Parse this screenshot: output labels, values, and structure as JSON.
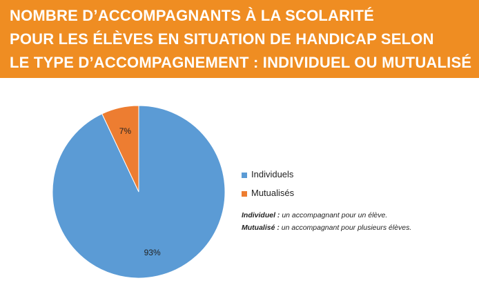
{
  "title": {
    "line1": "NOMBRE D’ACCOMPAGNANTS À LA SCOLARITÉ",
    "line2": "POUR LES ÉLÈVES EN SITUATION DE HANDICAP SELON",
    "line3": "LE TYPE D’ACCOMPAGNEMENT : INDIVIDUEL OU MUTUALISÉ"
  },
  "colors": {
    "banner": "#ef8d22",
    "individuels": "#5b9bd5",
    "mutualises": "#ed7d31"
  },
  "chart_data": {
    "type": "pie",
    "categories": [
      "Individuels",
      "Mutualisés"
    ],
    "values": [
      93,
      7
    ],
    "data_labels": [
      "93%",
      "7%"
    ],
    "legend_position": "right"
  },
  "legend": {
    "items": [
      {
        "label": "Individuels"
      },
      {
        "label": "Mutualisés"
      }
    ]
  },
  "notes": {
    "individuel_term": "Individuel :",
    "individuel_text": " un accompagnant pour un élève.",
    "mutualise_term": "Mutualisé :",
    "mutualise_text": " un accompagnant pour plusieurs élèves."
  }
}
